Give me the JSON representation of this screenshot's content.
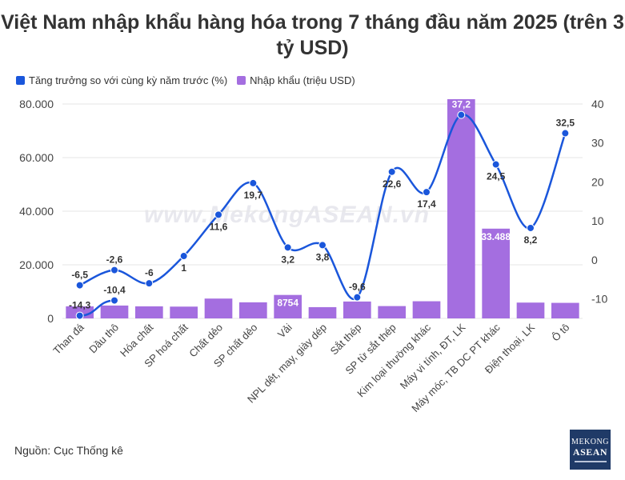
{
  "title": "Việt Nam nhập khẩu hàng hóa trong 7 tháng đầu năm 2025 (trên 3 tỷ USD)",
  "legend": {
    "line_label": "Tăng trưởng so với cùng kỳ năm trước (%)",
    "bar_label": "Nhập khẩu (triệu USD)",
    "line_color": "#1a56db",
    "bar_color": "#a46ee0"
  },
  "watermark": "www.MekongASEAN.vn",
  "source": "Nguồn: Cục Thống kê",
  "logo": {
    "line1": "MEKONG",
    "line2": "ASEAN"
  },
  "chart_data": {
    "type": "bar+line",
    "categories": [
      "Than đá",
      "Dầu thô",
      "Hóa chất",
      "SP hoá chất",
      "Chất dẻo",
      "SP chất dẻo",
      "Vải",
      "NPL dệt, may, giày dép",
      "Sắt thép",
      "SP từ sắt thép",
      "Kim loại thường khác",
      "Máy vi tính, ĐT, LK",
      "Máy móc, TB DC PT khác",
      "Điện thoại, LK",
      "Ô tô"
    ],
    "bar_values": [
      4500,
      4800,
      4500,
      4400,
      7400,
      6000,
      8754,
      4200,
      6300,
      4600,
      6400,
      81800,
      33488,
      5900,
      5800
    ],
    "bar_labels": [
      "",
      "",
      "",
      "",
      "",
      "",
      "8754",
      "",
      "",
      "",
      "",
      "",
      "33.488",
      "",
      ""
    ],
    "line_values": [
      -6.5,
      -2.6,
      -6,
      1,
      11.6,
      19.7,
      3.2,
      3.8,
      -9.6,
      22.6,
      17.4,
      37.2,
      24.5,
      8.2,
      32.5
    ],
    "line_labels": [
      "-6,5",
      "-2,6",
      "-6",
      "1",
      "11,6",
      "19,7",
      "3,2",
      "3,8",
      "-9,6",
      "22,6",
      "17,4",
      "37,2",
      "24,5",
      "8,2",
      "32,5"
    ],
    "extra_line_points": [
      {
        "category_index": 0,
        "value": -14.3,
        "label": "-14,3"
      },
      {
        "category_index": 1,
        "value": -10.4,
        "label": "-10,4"
      }
    ],
    "y_left": {
      "min": 0,
      "max": 80000,
      "ticks": [
        0,
        20000,
        40000,
        60000,
        80000
      ],
      "tick_labels": [
        "0",
        "20.000",
        "40.000",
        "60.000",
        "80.000"
      ]
    },
    "y_right": {
      "min": -15,
      "max": 40,
      "ticks": [
        -10,
        0,
        10,
        20,
        30,
        40
      ],
      "tick_labels": [
        "-10",
        "0",
        "10",
        "20",
        "30",
        "40"
      ]
    },
    "grid": true,
    "legend_position": "top-left"
  }
}
